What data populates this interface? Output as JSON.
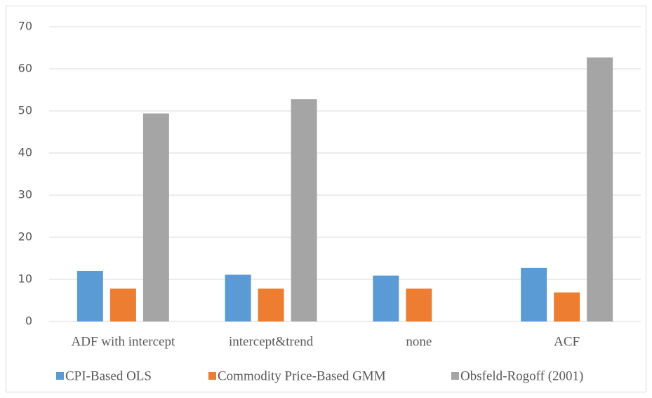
{
  "chart_data": {
    "type": "bar",
    "categories": [
      "ADF with intercept",
      "intercept&trend",
      "none",
      "ACF"
    ],
    "series": [
      {
        "name": "CPI-Based OLS",
        "color": "#5b9bd5",
        "values": [
          12,
          11.1,
          10.9,
          12.7
        ]
      },
      {
        "name": "Commodity Price-Based GMM",
        "color": "#ed7d31",
        "values": [
          7.8,
          7.8,
          7.8,
          6.9
        ]
      },
      {
        "name": "Obsfeld-Rogoff (2001)",
        "color": "#a5a5a5",
        "values": [
          49.4,
          52.8,
          null,
          62.7
        ]
      }
    ],
    "ylim": [
      0,
      70
    ],
    "yticks": [
      0,
      10,
      20,
      30,
      40,
      50,
      60,
      70
    ],
    "grid": true,
    "legend": "bottom"
  }
}
